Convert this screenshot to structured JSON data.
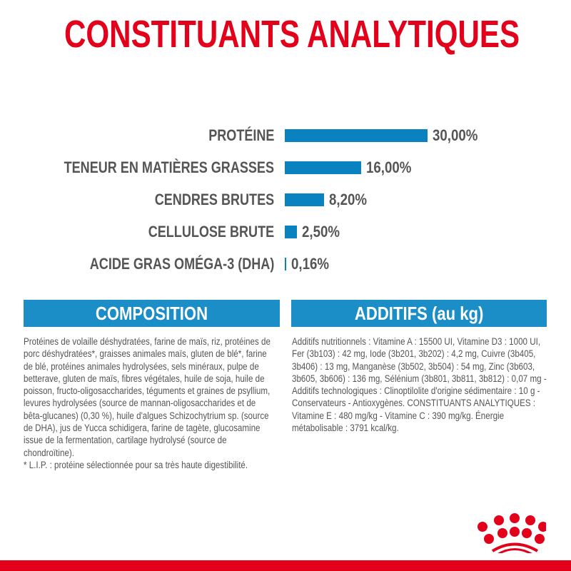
{
  "title": "CONSTITUANTS ANALYTIQUES",
  "chart_data": {
    "type": "bar",
    "orientation": "horizontal",
    "categories": [
      "PROTÉINE",
      "TENEUR EN MATIÈRES GRASSES",
      "CENDRES BRUTES",
      "CELLULOSE BRUTE",
      "ACIDE GRAS OMÉGA-3 (DHA)"
    ],
    "values": [
      30.0,
      16.0,
      8.2,
      2.5,
      0.16
    ],
    "labels": [
      "30,00%",
      "16,00%",
      "8,20%",
      "2,50%",
      "0,16%"
    ],
    "unit": "%",
    "bar_color": "#0a82c0",
    "grid": false
  },
  "composition": {
    "header": "COMPOSITION",
    "text": "Protéines de volaille déshydratées, farine de maïs, riz, protéines de porc déshydratées*, graisses animales maïs, gluten de blé*, farine de blé, protéines animales hydrolysées, sels minéraux, pulpe de betterave, gluten de maïs, fibres végétales, huile de soja, huile de poisson, fructo-oligosaccharides, téguments et graines de psyllium, levures hydrolysées (source de mannan-oligosaccharides et de bêta-glucanes) (0,30 %), huile d'algues Schizochytrium sp. (source de DHA), jus de Yucca schidigera, farine de tagète, glucosamine issue de la fermentation, cartilage hydrolysé (source de chondroïtine).",
    "footnote": "* L.I.P. : protéine sélectionnée pour sa très haute digestibilité."
  },
  "additifs": {
    "header": "ADDITIFS (au kg)",
    "text": "Additifs nutritionnels : Vitamine A : 15500 UI, Vitamine D3 : 1000 UI, Fer (3b103) : 42 mg, Iode (3b201, 3b202) : 4,2 mg, Cuivre (3b405, 3b406) : 13 mg, Manganèse (3b502, 3b504) : 54 mg, Zinc (3b603, 3b605, 3b606) : 136 mg, Sélénium (3b801, 3b811, 3b812) : 0,07 mg - Additifs technologiques : Clinoptilolite d'origine sédimentaire : 10 g - Conservateurs - Antioxygènes. CONSTITUANTS ANALYTIQUES : Vitamine E : 480 mg/kg - Vitamine C : 390 mg/kg. Énergie métabolisable : 3791 kcal/kg."
  },
  "colors": {
    "brand_red": "#e2001a",
    "accent_blue": "#1c8ec7",
    "text_grey": "#555555"
  },
  "logo": {
    "name": "crown-logo"
  }
}
